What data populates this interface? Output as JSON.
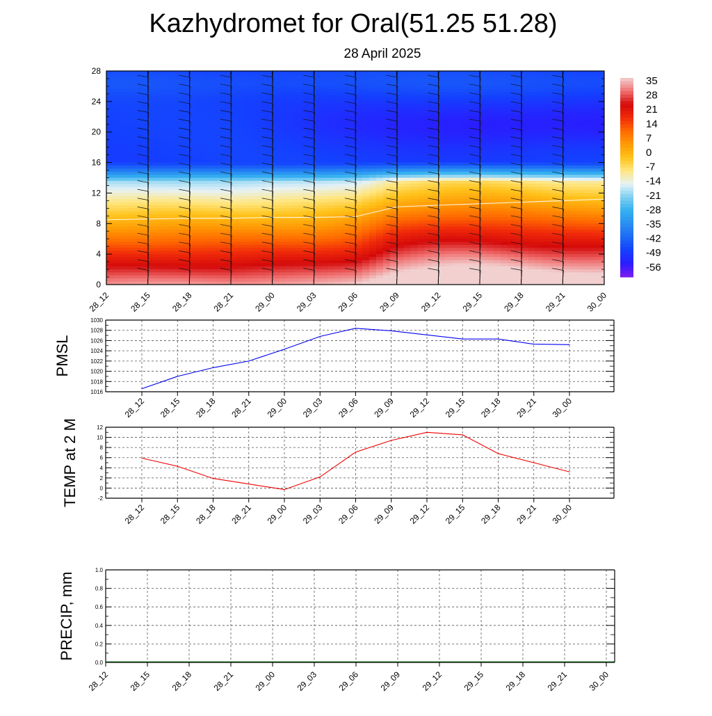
{
  "title": "Kazhydromet for Oral(51.25 51.28)",
  "subtitle": "28 April 2025",
  "chart_data": [
    {
      "type": "heatmap",
      "name": "cross-section temperature with wind barbs",
      "x_labels": [
        "28_12",
        "28_15",
        "28_18",
        "28_21",
        "29_00",
        "29_03",
        "29_06",
        "29_09",
        "29_12",
        "29_15",
        "29_18",
        "29_21",
        "30_00"
      ],
      "ylim": [
        0,
        28
      ],
      "y_ticks": [
        0,
        4,
        8,
        12,
        16,
        20,
        24,
        28
      ],
      "freezing_level": [
        8.5,
        8.6,
        8.7,
        8.7,
        8.8,
        8.8,
        8.9,
        10.2,
        10.4,
        10.6,
        10.8,
        11.0,
        11.2
      ],
      "colorbar": {
        "labels": [
          "35",
          "28",
          "21",
          "14",
          "7",
          "0",
          "-7",
          "-14",
          "-21",
          "-28",
          "-35",
          "-42",
          "-49",
          "-56"
        ],
        "stops": [
          {
            "value": -63,
            "color": "#7a1cf0"
          },
          {
            "value": -56,
            "color": "#2a1cff"
          },
          {
            "value": -49,
            "color": "#1440ff"
          },
          {
            "value": -42,
            "color": "#1c6af5"
          },
          {
            "value": -35,
            "color": "#2a8ff2"
          },
          {
            "value": -28,
            "color": "#34b0f0"
          },
          {
            "value": -21,
            "color": "#7dcff2"
          },
          {
            "value": -14,
            "color": "#e6f2f7"
          },
          {
            "value": -7,
            "color": "#ffe680"
          },
          {
            "value": 0,
            "color": "#ffc21a"
          },
          {
            "value": 7,
            "color": "#ff9a05"
          },
          {
            "value": 14,
            "color": "#ff6a00"
          },
          {
            "value": 21,
            "color": "#f02a0a"
          },
          {
            "value": 28,
            "color": "#d40a0a"
          },
          {
            "value": 35,
            "color": "#f07070"
          },
          {
            "value": 42,
            "color": "#f2d0d0"
          }
        ]
      }
    },
    {
      "type": "line",
      "ylabel": "PMSL",
      "categories": [
        "28_12",
        "28_15",
        "28_18",
        "28_21",
        "29_00",
        "29_03",
        "29_06",
        "29_09",
        "29_12",
        "29_15",
        "29_18",
        "29_21",
        "30_00"
      ],
      "ylim": [
        1016,
        1030
      ],
      "y_ticks": [
        1016,
        1018,
        1020,
        1022,
        1024,
        1026,
        1028,
        1030
      ],
      "series": [
        {
          "color": "#0000ee",
          "values": [
            1016.6,
            1019.0,
            1020.7,
            1022.0,
            1024.3,
            1026.8,
            1028.4,
            1027.9,
            1027.1,
            1026.3,
            1026.3,
            1025.3,
            1025.2
          ]
        }
      ]
    },
    {
      "type": "line",
      "ylabel": "TEMP at 2 M",
      "categories": [
        "28_12",
        "28_15",
        "28_18",
        "28_21",
        "29_00",
        "29_03",
        "29_06",
        "29_09",
        "29_12",
        "29_15",
        "29_18",
        "29_21",
        "30_00"
      ],
      "ylim": [
        -2,
        12
      ],
      "y_ticks": [
        -2,
        0,
        2,
        4,
        6,
        8,
        10,
        12
      ],
      "series": [
        {
          "color": "#ee0000",
          "values": [
            5.9,
            4.3,
            1.9,
            0.8,
            -0.3,
            2.2,
            7.1,
            9.4,
            11.0,
            10.5,
            6.8,
            5.0,
            3.2
          ]
        }
      ]
    },
    {
      "type": "bar",
      "ylabel": "PRECIP, mm",
      "categories": [
        "28_12",
        "28_15",
        "28_18",
        "28_21",
        "29_00",
        "29_03",
        "29_06",
        "29_09",
        "29_12",
        "29_15",
        "29_18",
        "29_21",
        "30_00"
      ],
      "ylim": [
        0.0,
        1.0
      ],
      "y_ticks": [
        "0.0",
        "0.2",
        "0.4",
        "0.6",
        "0.8",
        "1.0"
      ],
      "values": [
        0,
        0,
        0,
        0,
        0,
        0,
        0,
        0,
        0,
        0,
        0,
        0,
        0
      ]
    }
  ]
}
